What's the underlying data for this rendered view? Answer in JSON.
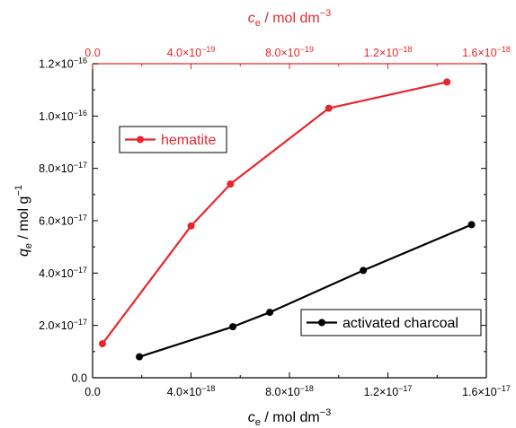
{
  "chart_data": {
    "type": "line",
    "ylabel": {
      "symbol": "q",
      "sub": "e",
      "rest": " / mol g",
      "sup": "−1"
    },
    "xlabel_bottom": {
      "symbol": "c",
      "sub": "e",
      "rest": " / mol dm",
      "sup": "−3"
    },
    "xlabel_top": {
      "symbol": "c",
      "sub": "e",
      "rest": " / mol dm",
      "sup": "−3"
    },
    "ylim": [
      0,
      1.2e-16
    ],
    "xlim_bottom": [
      0,
      1.6e-17
    ],
    "xlim_top": [
      0,
      1.6e-18
    ],
    "y_ticks": [
      {
        "value": 0,
        "label": "0.0"
      },
      {
        "value": 2e-17,
        "label": "2.0×10",
        "exp": "−17"
      },
      {
        "value": 4e-17,
        "label": "4.0×10",
        "exp": "−17"
      },
      {
        "value": 6e-17,
        "label": "6.0×10",
        "exp": "−17"
      },
      {
        "value": 8e-17,
        "label": "8.0×10",
        "exp": "−17"
      },
      {
        "value": 1e-16,
        "label": "1.0×10",
        "exp": "−16"
      },
      {
        "value": 1.2e-16,
        "label": "1.2×10",
        "exp": "−16"
      }
    ],
    "x_ticks_bottom": [
      {
        "value": 0,
        "label": "0.0"
      },
      {
        "value": 4e-18,
        "label": "4.0×10",
        "exp": "−18"
      },
      {
        "value": 8e-18,
        "label": "8.0×10",
        "exp": "−18"
      },
      {
        "value": 1.2e-17,
        "label": "1.2×10",
        "exp": "−17"
      },
      {
        "value": 1.6e-17,
        "label": "1.6×10",
        "exp": "−17"
      }
    ],
    "x_ticks_top": [
      {
        "value": 0,
        "label": "0.0"
      },
      {
        "value": 4e-19,
        "label": "4.0×10",
        "exp": "−19"
      },
      {
        "value": 8e-19,
        "label": "8.0×10",
        "exp": "−19"
      },
      {
        "value": 1.2e-18,
        "label": "1.2×10",
        "exp": "−18"
      },
      {
        "value": 1.6e-18,
        "label": "1.6×10",
        "exp": "−18"
      }
    ],
    "series": [
      {
        "name": "hematite",
        "axis": "top",
        "color": "#e8262b",
        "x": [
          4e-20,
          4e-19,
          5.6e-19,
          9.6e-19,
          1.44e-18
        ],
        "y": [
          1.3e-17,
          5.8e-17,
          7.4e-17,
          1.03e-16,
          1.13e-16
        ]
      },
      {
        "name": "activated charcoal",
        "axis": "bottom",
        "color": "#000000",
        "x": [
          1.9e-18,
          5.7e-18,
          7.2e-18,
          1.1e-17,
          1.54e-17
        ],
        "y": [
          8e-18,
          1.95e-17,
          2.5e-17,
          4.1e-17,
          5.85e-17
        ]
      }
    ],
    "legend": [
      {
        "series": 0,
        "placement": "upper-left"
      },
      {
        "series": 1,
        "placement": "lower-right"
      }
    ]
  }
}
